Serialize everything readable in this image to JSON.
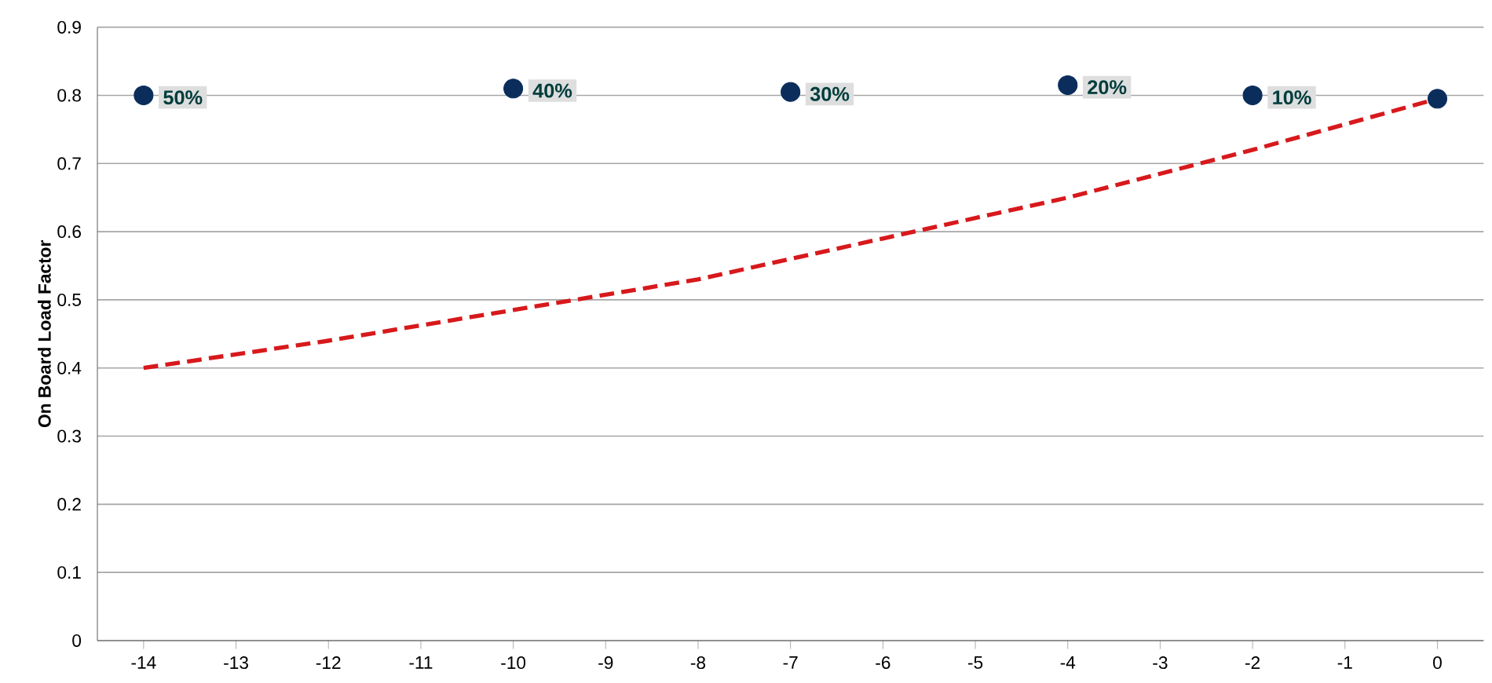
{
  "chart_data": {
    "type": "scatter",
    "ylabel": "On Board Load Factor",
    "xlim": [
      -14.5,
      0.5
    ],
    "ylim": [
      0,
      0.9
    ],
    "xticks": [
      -14,
      -13,
      -12,
      -11,
      -10,
      -9,
      -8,
      -7,
      -6,
      -5,
      -4,
      -3,
      -2,
      -1,
      0
    ],
    "yticks": [
      0,
      0.1,
      0.2,
      0.3,
      0.4,
      0.5,
      0.6,
      0.7,
      0.8,
      0.9
    ],
    "grid": "y",
    "annotations": [
      {
        "text": "50%",
        "x": -14,
        "y": 0.8
      },
      {
        "text": "40%",
        "x": -10,
        "y": 0.81
      },
      {
        "text": "30%",
        "x": -7,
        "y": 0.805
      },
      {
        "text": "20%",
        "x": -4,
        "y": 0.815
      },
      {
        "text": "10%",
        "x": -2,
        "y": 0.8
      }
    ],
    "series": [
      {
        "color": "#0b2d5c",
        "x": [
          -14,
          -10,
          -7,
          -4,
          -2,
          0
        ],
        "values": [
          0.8,
          0.81,
          0.805,
          0.815,
          0.8,
          0.795
        ]
      },
      {
        "type": "line",
        "color": "#d7191c",
        "line_style": "dashed",
        "marker": "none",
        "x": [
          -14,
          -12,
          -10,
          -8,
          -7,
          -6,
          -4,
          -2,
          0
        ],
        "values": [
          0.4,
          0.44,
          0.485,
          0.53,
          0.56,
          0.59,
          0.65,
          0.72,
          0.795
        ]
      }
    ]
  }
}
